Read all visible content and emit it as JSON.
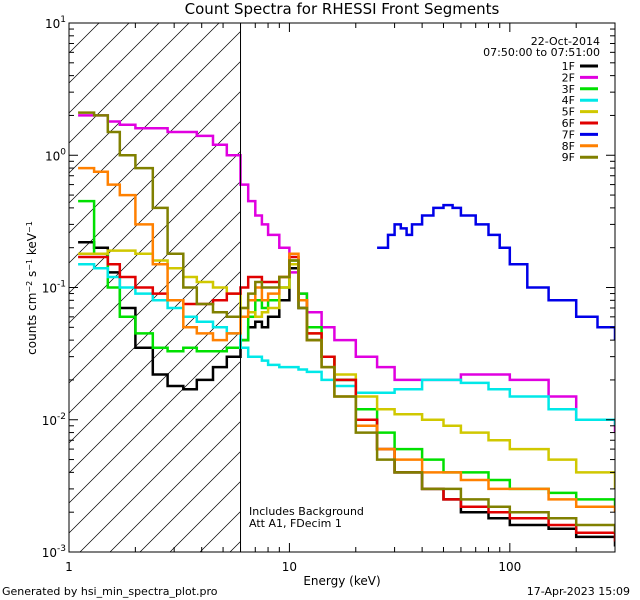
{
  "title": "Count Spectra for RHESSI Front Segments",
  "footer": {
    "left": "Generated by hsi_min_spectra_plot.pro",
    "right": "17-Apr-2023 15:09"
  },
  "legend_header": {
    "date": "22-Oct-2014",
    "time_range": "07:50:00 to 07:51:00"
  },
  "annotation": {
    "line1": "Includes Background",
    "line2": "Att A1, FDecim 1"
  },
  "colors": {
    "1F": "#000000",
    "2F": "#e000e0",
    "3F": "#00e000",
    "4F": "#00e8e8",
    "5F": "#d0c800",
    "6F": "#e00000",
    "7F": "#0000e8",
    "8F": "#ff8000",
    "9F": "#808000"
  },
  "chart_data": {
    "type": "line",
    "title": "Count Spectra for RHESSI Front Segments",
    "xlabel": "Energy (keV)",
    "ylabel": "counts cm-2 s-1 keV-1",
    "xscale": "log",
    "yscale": "log",
    "xlim": [
      1,
      300
    ],
    "ylim": [
      0.001,
      10
    ],
    "x_ticks": [
      "1",
      "10",
      "100"
    ],
    "y_ticks": [
      "10^-3",
      "10^-2",
      "10^-1",
      "10^0",
      "10^1"
    ],
    "legend_position": "top-right",
    "shaded_region_xmax": 6,
    "series": [
      {
        "name": "1F",
        "x": [
          1.1,
          1.3,
          1.5,
          1.7,
          2.0,
          2.4,
          2.8,
          3.3,
          3.8,
          4.5,
          5.2,
          6.0,
          6.5,
          7.0,
          7.5,
          8.0,
          9.0,
          10.0,
          11.0,
          12.0,
          14.0,
          16.0,
          20.0,
          25.0,
          30.0,
          40.0,
          50.0,
          60.0,
          80.0,
          100.0,
          150.0,
          200.0,
          300.0
        ],
        "y": [
          0.22,
          0.2,
          0.13,
          0.07,
          0.035,
          0.022,
          0.018,
          0.017,
          0.02,
          0.025,
          0.03,
          0.04,
          0.05,
          0.055,
          0.05,
          0.06,
          0.08,
          0.14,
          0.07,
          0.04,
          0.03,
          0.02,
          0.01,
          0.006,
          0.004,
          0.003,
          0.0025,
          0.002,
          0.0018,
          0.0016,
          0.0015,
          0.0013,
          0.0011
        ]
      },
      {
        "name": "2F",
        "x": [
          1.1,
          1.3,
          1.5,
          1.7,
          2.0,
          2.4,
          2.8,
          3.3,
          3.8,
          4.5,
          5.2,
          6.0,
          6.5,
          7.0,
          7.5,
          8.0,
          9.0,
          10.0,
          11.0,
          12.0,
          14.0,
          16.0,
          20.0,
          25.0,
          30.0,
          40.0,
          50.0,
          60.0,
          80.0,
          100.0,
          150.0,
          200.0,
          300.0
        ],
        "y": [
          2.0,
          2.0,
          1.8,
          1.7,
          1.6,
          1.6,
          1.5,
          1.5,
          1.4,
          1.2,
          1.0,
          0.6,
          0.45,
          0.35,
          0.3,
          0.25,
          0.2,
          0.13,
          0.09,
          0.065,
          0.05,
          0.04,
          0.03,
          0.025,
          0.02,
          0.02,
          0.02,
          0.022,
          0.022,
          0.02,
          0.015,
          0.01,
          0.008
        ]
      },
      {
        "name": "3F",
        "x": [
          1.1,
          1.3,
          1.5,
          1.7,
          2.0,
          2.4,
          2.8,
          3.3,
          3.8,
          4.5,
          5.2,
          6.0,
          6.5,
          7.0,
          7.5,
          8.0,
          9.0,
          10.0,
          11.0,
          12.0,
          14.0,
          16.0,
          20.0,
          25.0,
          30.0,
          40.0,
          50.0,
          60.0,
          80.0,
          100.0,
          150.0,
          200.0,
          300.0
        ],
        "y": [
          0.45,
          0.18,
          0.1,
          0.06,
          0.045,
          0.035,
          0.033,
          0.035,
          0.033,
          0.033,
          0.035,
          0.04,
          0.06,
          0.08,
          0.07,
          0.08,
          0.1,
          0.16,
          0.09,
          0.05,
          0.03,
          0.02,
          0.012,
          0.008,
          0.006,
          0.005,
          0.004,
          0.004,
          0.0035,
          0.003,
          0.0028,
          0.0025,
          0.0022
        ]
      },
      {
        "name": "4F",
        "x": [
          1.1,
          1.3,
          1.5,
          1.7,
          2.0,
          2.4,
          2.8,
          3.3,
          3.8,
          4.5,
          5.2,
          6.0,
          6.5,
          7.0,
          7.5,
          8.0,
          9.0,
          10.0,
          11.0,
          12.0,
          14.0,
          16.0,
          20.0,
          25.0,
          30.0,
          40.0,
          50.0,
          60.0,
          80.0,
          100.0,
          150.0,
          200.0,
          300.0
        ],
        "y": [
          0.15,
          0.14,
          0.12,
          0.1,
          0.09,
          0.08,
          0.07,
          0.06,
          0.055,
          0.05,
          0.045,
          0.035,
          0.03,
          0.03,
          0.028,
          0.026,
          0.025,
          0.025,
          0.024,
          0.023,
          0.02,
          0.018,
          0.016,
          0.016,
          0.017,
          0.02,
          0.02,
          0.019,
          0.017,
          0.015,
          0.012,
          0.01,
          0.009
        ]
      },
      {
        "name": "5F",
        "x": [
          1.1,
          1.3,
          1.5,
          1.7,
          2.0,
          2.4,
          2.8,
          3.3,
          3.8,
          4.5,
          5.2,
          6.0,
          6.5,
          7.0,
          7.5,
          8.0,
          9.0,
          10.0,
          11.0,
          12.0,
          14.0,
          16.0,
          20.0,
          25.0,
          30.0,
          40.0,
          50.0,
          60.0,
          80.0,
          100.0,
          150.0,
          200.0,
          300.0
        ],
        "y": [
          0.18,
          0.18,
          0.19,
          0.19,
          0.18,
          0.16,
          0.14,
          0.12,
          0.11,
          0.1,
          0.09,
          0.07,
          0.065,
          0.06,
          0.065,
          0.07,
          0.1,
          0.15,
          0.08,
          0.045,
          0.03,
          0.022,
          0.015,
          0.012,
          0.011,
          0.01,
          0.009,
          0.008,
          0.007,
          0.006,
          0.005,
          0.004,
          0.003
        ]
      },
      {
        "name": "6F",
        "x": [
          1.1,
          1.3,
          1.5,
          1.7,
          2.0,
          2.4,
          2.8,
          3.3,
          3.8,
          4.5,
          5.2,
          6.0,
          6.5,
          7.0,
          7.5,
          8.0,
          9.0,
          10.0,
          11.0,
          12.0,
          14.0,
          16.0,
          20.0,
          25.0,
          30.0,
          40.0,
          50.0,
          60.0,
          80.0,
          100.0,
          150.0,
          200.0,
          300.0
        ],
        "y": [
          0.17,
          0.17,
          0.15,
          0.12,
          0.1,
          0.09,
          0.08,
          0.075,
          0.075,
          0.08,
          0.09,
          0.1,
          0.12,
          0.12,
          0.11,
          0.11,
          0.12,
          0.17,
          0.08,
          0.045,
          0.03,
          0.02,
          0.01,
          0.006,
          0.004,
          0.003,
          0.0025,
          0.0022,
          0.002,
          0.0018,
          0.0016,
          0.0014,
          0.0012
        ]
      },
      {
        "name": "7F",
        "x": [
          25.0,
          28.0,
          30.0,
          32.0,
          34.0,
          36.0,
          40.0,
          45.0,
          50.0,
          55.0,
          60.0,
          70.0,
          80.0,
          90.0,
          100.0,
          120.0,
          150.0,
          200.0,
          250.0,
          300.0
        ],
        "y": [
          0.2,
          0.25,
          0.3,
          0.28,
          0.25,
          0.3,
          0.35,
          0.4,
          0.42,
          0.4,
          0.35,
          0.3,
          0.25,
          0.2,
          0.15,
          0.1,
          0.08,
          0.06,
          0.05,
          0.04
        ]
      },
      {
        "name": "8F",
        "x": [
          1.1,
          1.3,
          1.5,
          1.7,
          2.0,
          2.4,
          2.8,
          3.3,
          3.8,
          4.5,
          5.2,
          6.0,
          6.5,
          7.0,
          7.5,
          8.0,
          9.0,
          10.0,
          11.0,
          12.0,
          14.0,
          16.0,
          20.0,
          25.0,
          30.0,
          40.0,
          50.0,
          60.0,
          80.0,
          100.0,
          150.0,
          200.0,
          300.0
        ],
        "y": [
          0.8,
          0.75,
          0.6,
          0.5,
          0.3,
          0.15,
          0.08,
          0.05,
          0.045,
          0.04,
          0.045,
          0.06,
          0.08,
          0.1,
          0.08,
          0.09,
          0.12,
          0.18,
          0.08,
          0.04,
          0.025,
          0.015,
          0.009,
          0.006,
          0.005,
          0.004,
          0.004,
          0.0035,
          0.003,
          0.003,
          0.0025,
          0.0022,
          0.002
        ]
      },
      {
        "name": "9F",
        "x": [
          1.1,
          1.3,
          1.5,
          1.7,
          2.0,
          2.4,
          2.8,
          3.3,
          3.8,
          4.5,
          5.2,
          6.0,
          6.5,
          7.0,
          7.5,
          8.0,
          9.0,
          10.0,
          11.0,
          12.0,
          14.0,
          16.0,
          20.0,
          25.0,
          30.0,
          40.0,
          50.0,
          60.0,
          80.0,
          100.0,
          150.0,
          200.0,
          300.0
        ],
        "y": [
          2.1,
          2.0,
          1.5,
          1.0,
          0.8,
          0.4,
          0.18,
          0.1,
          0.075,
          0.065,
          0.06,
          0.07,
          0.09,
          0.11,
          0.1,
          0.1,
          0.12,
          0.16,
          0.07,
          0.04,
          0.025,
          0.015,
          0.008,
          0.005,
          0.004,
          0.003,
          0.003,
          0.0025,
          0.0022,
          0.002,
          0.0018,
          0.0016,
          0.0014
        ]
      }
    ]
  }
}
